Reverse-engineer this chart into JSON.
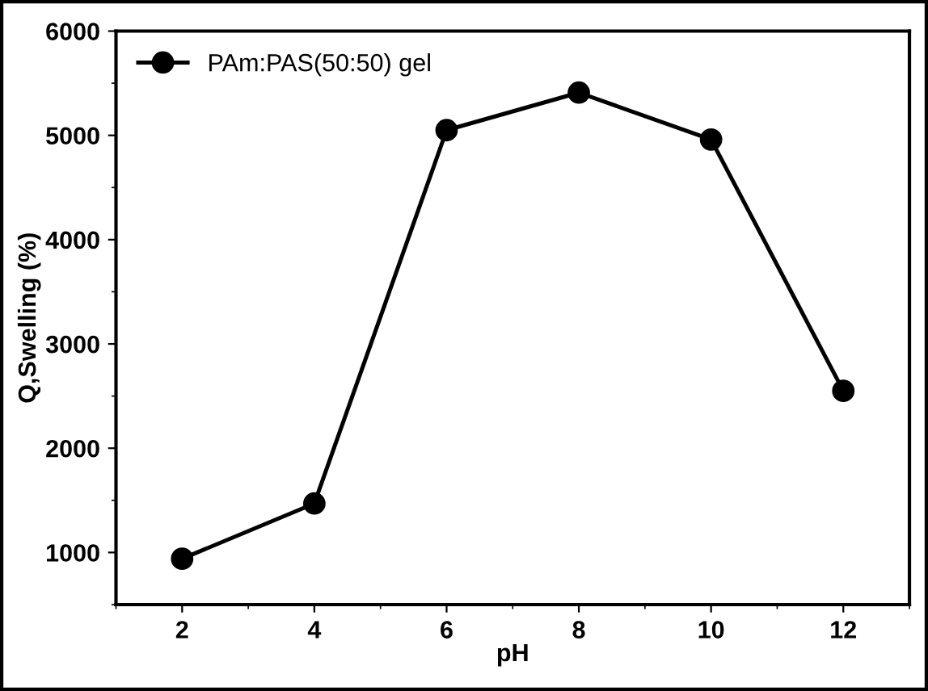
{
  "chart_data": {
    "type": "line",
    "xlabel": "pH",
    "ylabel": "Q,Swelling (%)",
    "x": [
      2,
      4,
      6,
      8,
      10,
      12
    ],
    "series": [
      {
        "name": "PAm:PAS(50:50) gel",
        "color": "#000000",
        "values": [
          940,
          1470,
          5050,
          5410,
          4960,
          2550
        ]
      }
    ],
    "xlim": [
      1,
      13
    ],
    "xticks": [
      2,
      4,
      6,
      8,
      10,
      12
    ],
    "ylim": [
      500,
      6000
    ],
    "yticks": [
      1000,
      2000,
      3000,
      4000,
      5000,
      6000
    ],
    "marker": "circle",
    "line_style": "solid",
    "legend": "top left",
    "grid": false
  }
}
